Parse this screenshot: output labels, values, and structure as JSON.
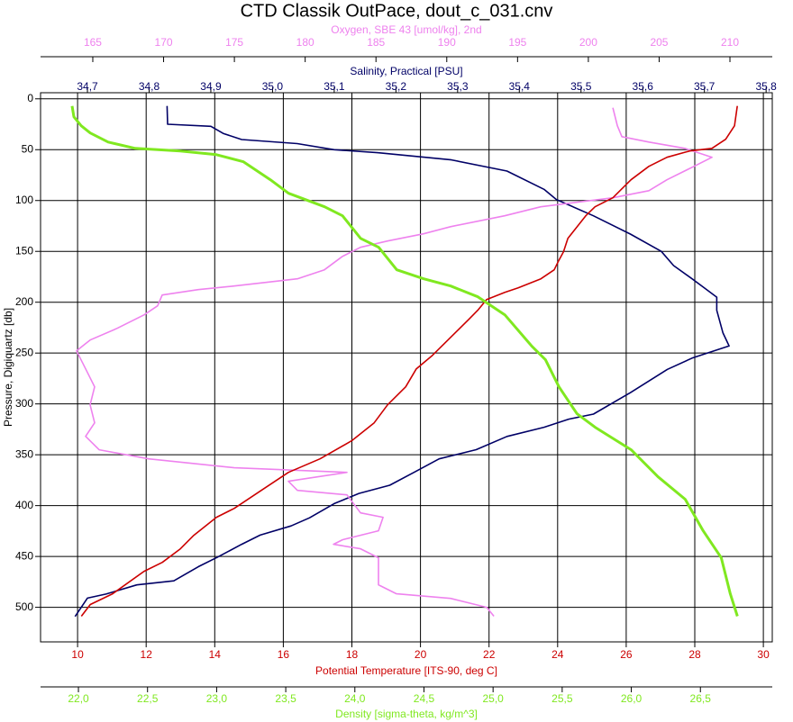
{
  "chart_data": {
    "type": "line",
    "title": "CTD Classik OutPace, dout_c_031.cnv",
    "ylabel": "Pressure, Digiquartz [db]",
    "ylim": [
      -6,
      534
    ],
    "y_inverted": true,
    "yticks": [
      0,
      50,
      100,
      150,
      200,
      250,
      300,
      350,
      400,
      450,
      500
    ],
    "grid": true,
    "series": [
      {
        "label": "Salinity, Practical [PSU]",
        "color": "#000066",
        "position": "top",
        "xlim": [
          34.624,
          35.81
        ],
        "xticks": [
          {
            "value": 34.7,
            "label": "34,7"
          },
          {
            "value": 34.8,
            "label": "34,8"
          },
          {
            "value": 34.9,
            "label": "34,9"
          },
          {
            "value": 35.0,
            "label": "35,0"
          },
          {
            "value": 35.1,
            "label": "35,1"
          },
          {
            "value": 35.2,
            "label": "35,2"
          },
          {
            "value": 35.3,
            "label": "35,3"
          },
          {
            "value": 35.4,
            "label": "35,4"
          },
          {
            "value": 35.5,
            "label": "35,5"
          },
          {
            "value": 35.6,
            "label": "35,6"
          },
          {
            "value": 35.7,
            "label": "35,7"
          },
          {
            "value": 35.8,
            "label": "35,8"
          }
        ],
        "values": [
          34.829,
          34.83,
          34.9,
          34.92,
          34.95,
          35.04,
          35.1,
          35.17,
          35.29,
          35.38,
          35.44,
          35.46,
          35.52,
          35.58,
          35.63,
          35.65,
          35.68,
          35.7,
          35.72,
          35.72,
          35.73,
          35.74,
          35.68,
          35.64,
          35.58,
          35.52,
          35.48,
          35.44,
          35.38,
          35.33,
          35.27,
          35.23,
          35.19,
          35.14,
          35.1,
          35.06,
          35.03,
          34.98,
          34.95,
          34.91,
          34.88,
          34.84,
          34.78,
          34.73,
          34.7,
          34.68
        ],
        "pressure": [
          7,
          25,
          27,
          34,
          40,
          44,
          50,
          53,
          60,
          71,
          89,
          99,
          115,
          133,
          150,
          164,
          177,
          186,
          195,
          208,
          230,
          243,
          255,
          266,
          289,
          310,
          315,
          323,
          332,
          345,
          354,
          367,
          380,
          388,
          398,
          412,
          420,
          429,
          438,
          451,
          460,
          474,
          478,
          487,
          491,
          509
        ]
      },
      {
        "label": "Oxygen, SBE 43 [umol/kg], 2nd",
        "color": "#ee82ee",
        "position": "top",
        "xlim": [
          161.31,
          212.99
        ],
        "xticks": [
          165,
          170,
          175,
          180,
          185,
          190,
          195,
          200,
          205,
          210
        ],
        "values": [
          201.73,
          202.05,
          202.37,
          204.28,
          206.82,
          208.73,
          207.46,
          205.55,
          204.28,
          201.73,
          196.64,
          194.09,
          190.27,
          188.36,
          185.82,
          183.91,
          182.63,
          181.36,
          179.45,
          174.99,
          172.45,
          169.9,
          169.58,
          168.63,
          166.72,
          164.81,
          163.85,
          164.49,
          165.13,
          164.81,
          165.13,
          164.49,
          165.45,
          168.95,
          174.99,
          182.95,
          178.81,
          179.45,
          182.95,
          183.91,
          185.5,
          185.18,
          182.63,
          182.0,
          183.91,
          185.18,
          185.18,
          186.45,
          190.27,
          192.82,
          193.33
        ],
        "pressure": [
          8.8,
          26.5,
          37.2,
          42.5,
          48.7,
          57.5,
          66.4,
          79.6,
          90.3,
          97.3,
          106.2,
          115,
          125.7,
          132.7,
          139.8,
          146,
          154.9,
          168.1,
          177,
          184.1,
          187.6,
          192.9,
          203.5,
          212.4,
          225.7,
          237.2,
          247.8,
          265.5,
          283.2,
          300.9,
          318.6,
          331.9,
          345.1,
          354,
          362.8,
          367.3,
          376.1,
          385,
          389.4,
          407.1,
          411.5,
          424.8,
          433.6,
          438,
          442.5,
          451.3,
          477.9,
          486.7,
          491.2,
          500,
          508.8
        ]
      },
      {
        "label": "Potential Temperature [ITS-90, deg C]",
        "color": "#cc0000",
        "position": "bottom",
        "xlim": [
          8.92,
          30.26
        ],
        "xticks": [
          10,
          12,
          14,
          16,
          18,
          20,
          22,
          24,
          26,
          28,
          30
        ],
        "values": [
          29.24,
          29.16,
          28.9,
          28.5,
          27.85,
          27.19,
          26.66,
          26.14,
          25.87,
          25.61,
          25.09,
          24.82,
          24.3,
          24.17,
          24.03,
          23.9,
          23.51,
          22.85,
          22.46,
          21.93,
          21.67,
          21.41,
          20.88,
          20.35,
          19.88,
          19.57,
          19.04,
          18.65,
          17.99,
          17.07,
          16.15,
          15.36,
          14.57,
          14.05,
          13.39,
          13.0,
          12.47,
          11.94,
          11.02,
          10.37,
          10.11
        ],
        "pressure": [
          7,
          26.5,
          39.8,
          48.7,
          51.3,
          57.5,
          66.4,
          79.6,
          88.5,
          97.3,
          106.2,
          115,
          137.2,
          150.4,
          159.3,
          168.1,
          177,
          185.8,
          190.3,
          197.3,
          208,
          216.8,
          234.5,
          252.2,
          265.5,
          283.2,
          300.9,
          318.6,
          336.3,
          354,
          367.3,
          385,
          402.7,
          411.5,
          429.2,
          442.5,
          455.8,
          464.6,
          486.7,
          497.3,
          508.8
        ]
      },
      {
        "label": "Density [sigma-theta, kg/m^3]",
        "color": "#80e820",
        "position": "bottom",
        "xlim": [
          21.726,
          27.02
        ],
        "xticks": [
          {
            "value": 22.0,
            "label": "22,0"
          },
          {
            "value": 22.5,
            "label": "22,5"
          },
          {
            "value": 23.0,
            "label": "23,0"
          },
          {
            "value": 23.5,
            "label": "23,5"
          },
          {
            "value": 24.0,
            "label": "24,0"
          },
          {
            "value": 24.5,
            "label": "24,5"
          },
          {
            "value": 25.0,
            "label": "25,0"
          },
          {
            "value": 25.5,
            "label": "25,5"
          },
          {
            "value": 26.0,
            "label": "26,0"
          },
          {
            "value": 26.5,
            "label": "26,5"
          }
        ],
        "values": [
          21.954,
          21.967,
          22.02,
          22.085,
          22.215,
          22.411,
          22.737,
          22.998,
          23.194,
          23.389,
          23.52,
          23.781,
          23.911,
          24.042,
          24.172,
          24.303,
          24.498,
          24.694,
          24.89,
          25.085,
          25.281,
          25.379,
          25.477,
          25.607,
          25.738,
          25.999,
          26.194,
          26.39,
          26.52,
          26.651,
          26.716,
          26.768
        ],
        "pressure": [
          7,
          17.7,
          26.5,
          33.6,
          42.5,
          48.7,
          51.3,
          54.9,
          61.9,
          79.6,
          92.9,
          106.2,
          115,
          137.2,
          146,
          168.1,
          177,
          184.1,
          194.7,
          212.4,
          243.4,
          256.6,
          283.2,
          309.7,
          323,
          345.1,
          371.7,
          393.8,
          424.8,
          451.3,
          486.7,
          508.8
        ]
      }
    ]
  }
}
